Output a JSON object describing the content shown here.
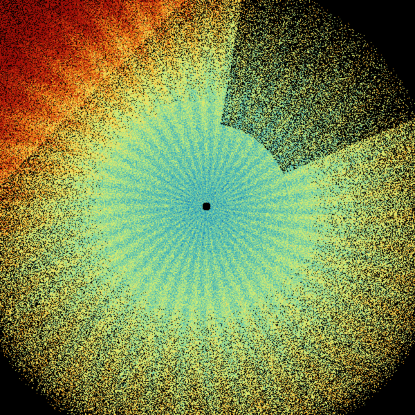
{
  "image": {
    "kind": "radar-sweep",
    "colors": {
      "background": "#000000",
      "palette": [
        "#0a4f8a",
        "#1b7fb5",
        "#3fb0b8",
        "#7fd0a0",
        "#c8ec78",
        "#f0e060",
        "#f0a020",
        "#d04010",
        "#a01008"
      ]
    }
  }
}
